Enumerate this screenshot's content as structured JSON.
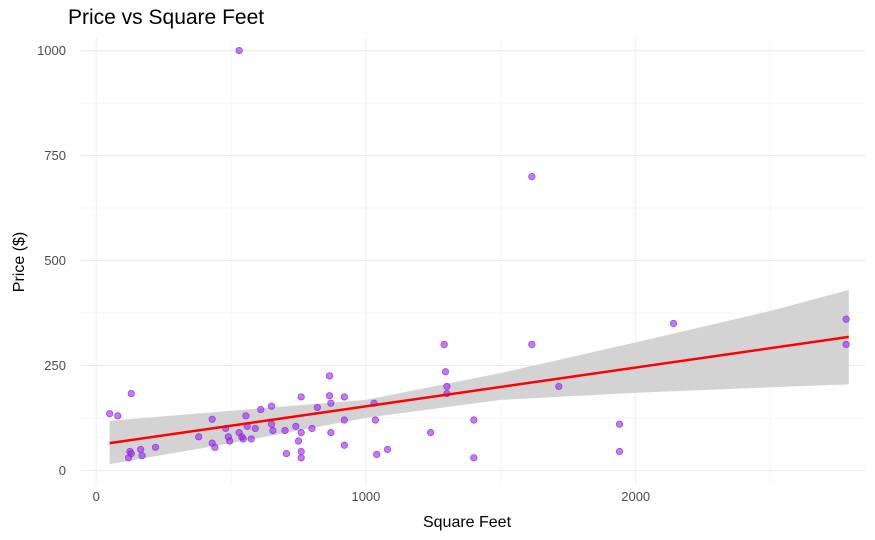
{
  "chart_data": {
    "type": "scatter",
    "title": "Price vs Square Feet",
    "xlabel": "Square Feet",
    "ylabel": "Price ($)",
    "xlim": [
      -60,
      2850
    ],
    "ylim": [
      -30,
      1030
    ],
    "x_ticks": [
      0,
      1000,
      2000
    ],
    "y_ticks": [
      0,
      250,
      500,
      750,
      1000
    ],
    "grid": true,
    "colors": {
      "points": "#a020f0",
      "fit_line": "#ff0000",
      "ribbon": "#d3d3d3"
    },
    "points": [
      [
        50,
        135
      ],
      [
        80,
        130
      ],
      [
        130,
        183
      ],
      [
        120,
        30
      ],
      [
        125,
        45
      ],
      [
        130,
        40
      ],
      [
        165,
        50
      ],
      [
        170,
        35
      ],
      [
        220,
        55
      ],
      [
        380,
        80
      ],
      [
        430,
        122
      ],
      [
        430,
        65
      ],
      [
        440,
        55
      ],
      [
        480,
        100
      ],
      [
        490,
        80
      ],
      [
        495,
        70
      ],
      [
        530,
        1000
      ],
      [
        530,
        90
      ],
      [
        540,
        80
      ],
      [
        545,
        75
      ],
      [
        555,
        130
      ],
      [
        560,
        105
      ],
      [
        575,
        75
      ],
      [
        590,
        100
      ],
      [
        610,
        145
      ],
      [
        650,
        153
      ],
      [
        650,
        110
      ],
      [
        655,
        95
      ],
      [
        700,
        95
      ],
      [
        705,
        40
      ],
      [
        740,
        105
      ],
      [
        750,
        70
      ],
      [
        760,
        175
      ],
      [
        760,
        90
      ],
      [
        760,
        45
      ],
      [
        760,
        30
      ],
      [
        800,
        100
      ],
      [
        820,
        150
      ],
      [
        865,
        225
      ],
      [
        865,
        178
      ],
      [
        870,
        90
      ],
      [
        870,
        160
      ],
      [
        920,
        175
      ],
      [
        920,
        120
      ],
      [
        920,
        60
      ],
      [
        1030,
        160
      ],
      [
        1035,
        120
      ],
      [
        1040,
        38
      ],
      [
        1080,
        50
      ],
      [
        1240,
        90
      ],
      [
        1290,
        300
      ],
      [
        1295,
        235
      ],
      [
        1300,
        200
      ],
      [
        1300,
        183
      ],
      [
        1400,
        120
      ],
      [
        1400,
        30
      ],
      [
        1615,
        700
      ],
      [
        1615,
        300
      ],
      [
        1715,
        200
      ],
      [
        1940,
        110
      ],
      [
        1940,
        45
      ],
      [
        2140,
        350
      ],
      [
        2780,
        360
      ],
      [
        2780,
        300
      ]
    ],
    "fit_line": {
      "x": [
        50,
        2790
      ],
      "y": [
        65,
        318
      ]
    },
    "confidence_band": {
      "x": [
        50,
        500,
        1000,
        1500,
        2000,
        2500,
        2790
      ],
      "upper": [
        118,
        142,
        168,
        232,
        305,
        380,
        430
      ],
      "lower": [
        15,
        65,
        125,
        168,
        185,
        198,
        205
      ]
    }
  }
}
